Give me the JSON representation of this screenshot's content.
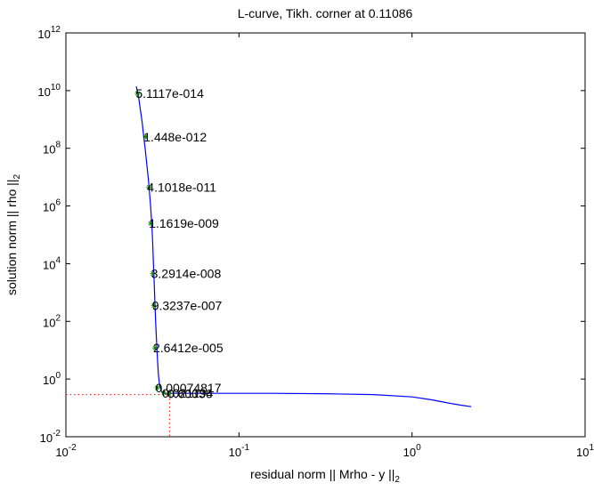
{
  "chart_data": {
    "type": "line",
    "title": "L-curve, Tikh. corner at 0.11086",
    "xlabel": {
      "main": "residual norm || Mrho - y ||",
      "sub": "2"
    },
    "ylabel": {
      "main": "solution norm || rho ||",
      "sub": "2"
    },
    "xscale": "log",
    "yscale": "log",
    "xlim": [
      0.01,
      10
    ],
    "ylim": [
      0.01,
      1000000000000
    ],
    "grid": false,
    "x_ticks": [
      {
        "value": 0.01,
        "base": "10",
        "exp": "-2"
      },
      {
        "value": 0.1,
        "base": "10",
        "exp": "-1"
      },
      {
        "value": 1,
        "base": "10",
        "exp": "0"
      },
      {
        "value": 10,
        "base": "10",
        "exp": "1"
      }
    ],
    "y_ticks": [
      {
        "value": 0.01,
        "base": "10",
        "exp": "-2"
      },
      {
        "value": 1,
        "base": "10",
        "exp": "0"
      },
      {
        "value": 100,
        "base": "10",
        "exp": "2"
      },
      {
        "value": 10000,
        "base": "10",
        "exp": "4"
      },
      {
        "value": 1000000,
        "base": "10",
        "exp": "6"
      },
      {
        "value": 100000000,
        "base": "10",
        "exp": "8"
      },
      {
        "value": 10000000000,
        "base": "10",
        "exp": "10"
      },
      {
        "value": 1000000000000,
        "base": "10",
        "exp": "12"
      }
    ],
    "series": [
      {
        "color": "#0000ff",
        "x": [
          0.0255,
          0.0262,
          0.0275,
          0.0288,
          0.03,
          0.0308,
          0.0314,
          0.0318,
          0.0321,
          0.0324,
          0.0327,
          0.033,
          0.0334,
          0.0338,
          0.0342,
          0.0348,
          0.0356,
          0.0366,
          0.0378,
          0.0395,
          0.05,
          0.08,
          0.15,
          0.3,
          0.6,
          1.0,
          1.3,
          1.6,
          1.9,
          2.2
        ],
        "y": [
          14000000000,
          7000000000,
          900000000,
          80000000,
          8000000,
          1200000,
          200000,
          40000,
          8000,
          2000,
          400,
          90,
          20,
          5,
          1.5,
          0.6,
          0.38,
          0.33,
          0.32,
          0.32,
          0.32,
          0.32,
          0.32,
          0.31,
          0.29,
          0.24,
          0.19,
          0.15,
          0.125,
          0.11
        ]
      }
    ],
    "markers": [
      {
        "x": 0.0259,
        "y": 8000000000,
        "label": "5.1117e-014"
      },
      {
        "x": 0.0288,
        "y": 250000000,
        "label": "1.448e-012"
      },
      {
        "x": 0.0302,
        "y": 4500000,
        "label": "4.1018e-011"
      },
      {
        "x": 0.0309,
        "y": 250000,
        "label": "1.1619e-009"
      },
      {
        "x": 0.0318,
        "y": 4500,
        "label": "3.2914e-008"
      },
      {
        "x": 0.0322,
        "y": 350,
        "label": "9.3237e-007"
      },
      {
        "x": 0.0327,
        "y": 12,
        "label": "2.6412e-005"
      },
      {
        "x": 0.0337,
        "y": 0.5,
        "label": "0.00074817"
      },
      {
        "x": 0.0368,
        "y": 0.33,
        "label": "0.021194"
      },
      {
        "x": 0.0395,
        "y": 0.31,
        "label": "0.60036"
      }
    ],
    "corner": {
      "x": 0.0397,
      "y": 0.29,
      "color": "#ff0000"
    }
  }
}
